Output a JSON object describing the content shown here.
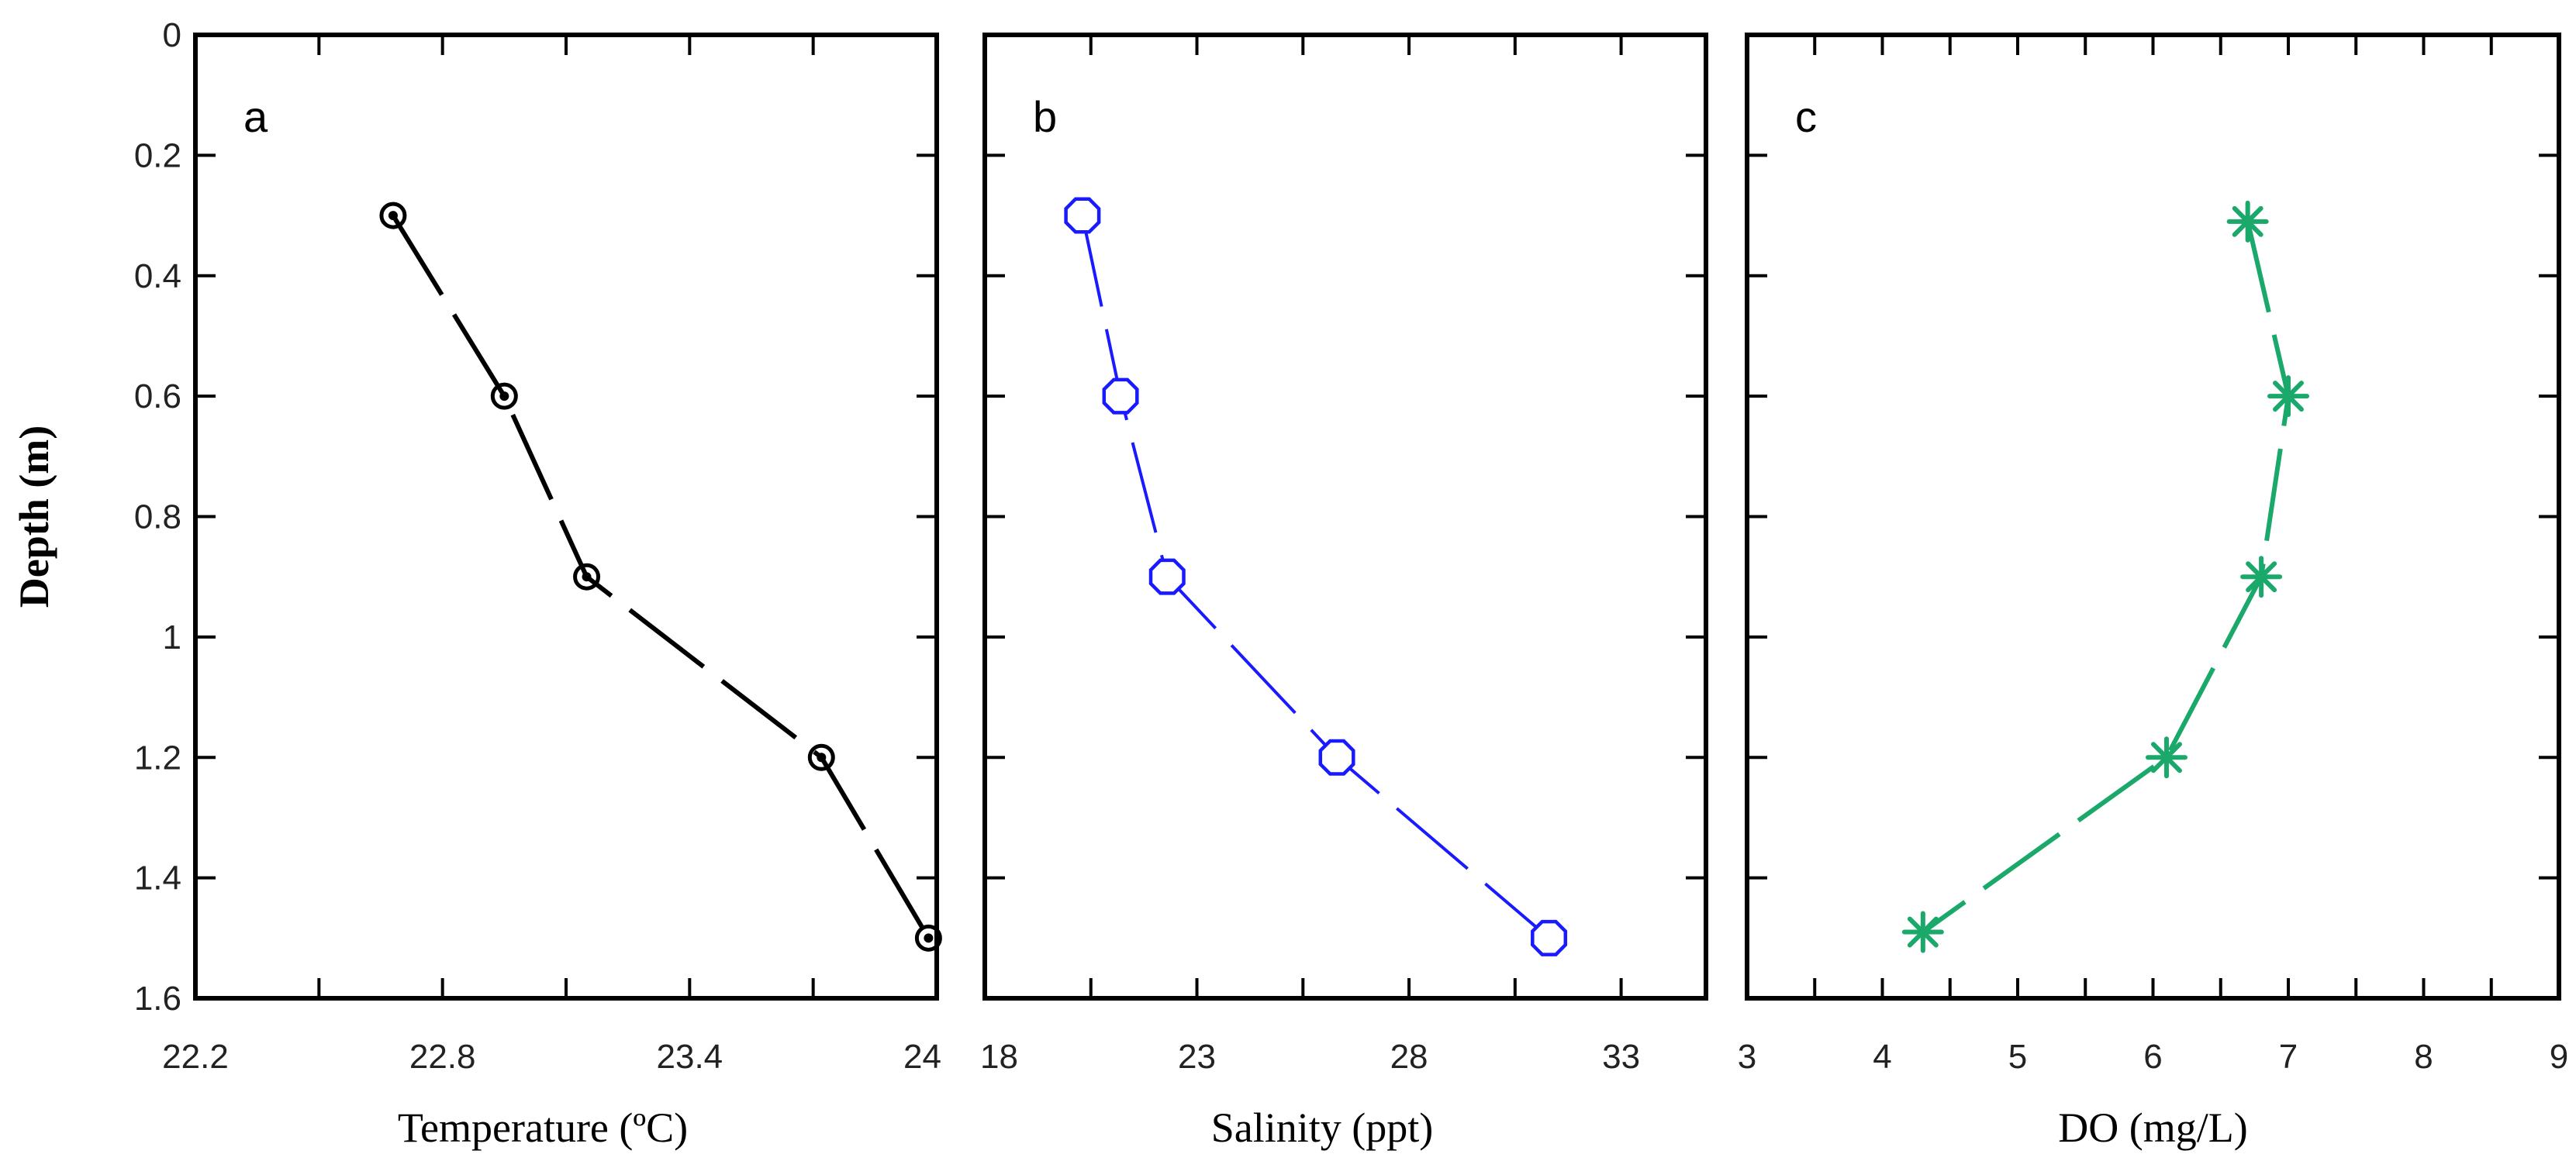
{
  "chart_data": [
    {
      "type": "line",
      "panel_label": "a",
      "xlabel": "Temperature (ºC)",
      "ylabel": "Depth (m)",
      "xlim": [
        22.2,
        24
      ],
      "ylim": [
        0,
        1.6
      ],
      "y_inverted": true,
      "xticks": [
        22.2,
        22.8,
        23.4,
        24
      ],
      "xtick_labels": [
        "22.2",
        "22.8",
        "23.4",
        "24"
      ],
      "yticks": [
        0,
        0.2,
        0.4,
        0.6,
        0.8,
        1,
        1.2,
        1.4,
        1.6
      ],
      "ytick_labels": [
        "0",
        "0.2",
        "0.4",
        "0.6",
        "0.8",
        "1",
        "1.2",
        "1.4",
        "1.6"
      ],
      "series": [
        {
          "name": "Temperature",
          "color": "#000000",
          "marker": "circle-dot",
          "x": [
            22.68,
            22.95,
            23.15,
            23.72,
            23.98
          ],
          "y": [
            0.3,
            0.6,
            0.9,
            1.2,
            1.5
          ]
        }
      ]
    },
    {
      "type": "line",
      "panel_label": "b",
      "xlabel": "Salinity (ppt)",
      "ylabel": "",
      "xlim": [
        18,
        35
      ],
      "ylim": [
        0,
        1.6
      ],
      "y_inverted": true,
      "xticks": [
        18,
        23,
        28,
        33
      ],
      "xtick_labels": [
        "18",
        "23",
        "28",
        "33"
      ],
      "yticks": [
        0,
        0.2,
        0.4,
        0.6,
        0.8,
        1,
        1.2,
        1.4,
        1.6
      ],
      "ytick_labels": [],
      "series": [
        {
          "name": "Salinity",
          "color": "#1a1aff",
          "marker": "open-octagon",
          "x": [
            20.3,
            21.2,
            22.3,
            26.3,
            31.3
          ],
          "y": [
            0.3,
            0.6,
            0.9,
            1.2,
            1.5
          ]
        }
      ]
    },
    {
      "type": "line",
      "panel_label": "c",
      "xlabel": "DO (mg/L)",
      "ylabel": "",
      "xlim": [
        3,
        9
      ],
      "ylim": [
        0,
        1.6
      ],
      "y_inverted": true,
      "xticks": [
        3,
        4,
        5,
        6,
        7,
        8,
        9
      ],
      "xtick_labels": [
        "3",
        "4",
        "5",
        "6",
        "7",
        "8",
        "9"
      ],
      "yticks": [
        0,
        0.2,
        0.4,
        0.6,
        0.8,
        1,
        1.2,
        1.4,
        1.6
      ],
      "ytick_labels": [],
      "series": [
        {
          "name": "DO",
          "color": "#1aa86b",
          "marker": "asterisk",
          "x": [
            6.7,
            7.0,
            6.8,
            6.1,
            4.3
          ],
          "y": [
            0.31,
            0.6,
            0.9,
            1.2,
            1.49
          ]
        }
      ]
    }
  ]
}
